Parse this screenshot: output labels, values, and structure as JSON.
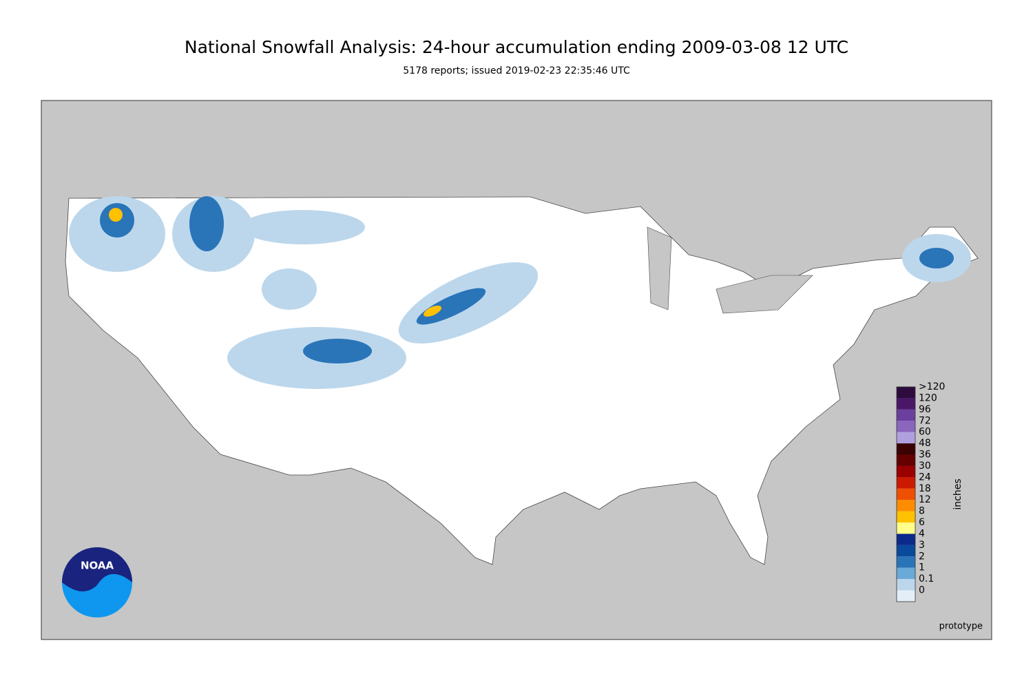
{
  "title": "National Snowfall Analysis: 24-hour accumulation ending 2009-03-08 12 UTC",
  "subtitle": "5178 reports; issued 2019-02-23 22:35:46 UTC",
  "logo": "NOAA",
  "note": "prototype",
  "legend": {
    "unit": "inches",
    "entries": [
      {
        "label": ">120",
        "color": "#2d0b3f"
      },
      {
        "label": "120",
        "color": "#4a1768"
      },
      {
        "label": "96",
        "color": "#6a3f9e"
      },
      {
        "label": "72",
        "color": "#8a66bd"
      },
      {
        "label": "60",
        "color": "#b0a0e0"
      },
      {
        "label": "48",
        "color": "#3a0202"
      },
      {
        "label": "36",
        "color": "#640000"
      },
      {
        "label": "30",
        "color": "#9a0000"
      },
      {
        "label": "24",
        "color": "#cc1a00"
      },
      {
        "label": "18",
        "color": "#ef4f00"
      },
      {
        "label": "12",
        "color": "#ff8c00"
      },
      {
        "label": "8",
        "color": "#ffc100"
      },
      {
        "label": "6",
        "color": "#ffff8a"
      },
      {
        "label": "4",
        "color": "#0c2a8a"
      },
      {
        "label": "3",
        "color": "#0a4a9c"
      },
      {
        "label": "2",
        "color": "#2a74b8"
      },
      {
        "label": "1",
        "color": "#6aaad8"
      },
      {
        "label": "0.1",
        "color": "#bcd7ec"
      },
      {
        "label": "0",
        "color": "#e4eef7"
      }
    ]
  }
}
